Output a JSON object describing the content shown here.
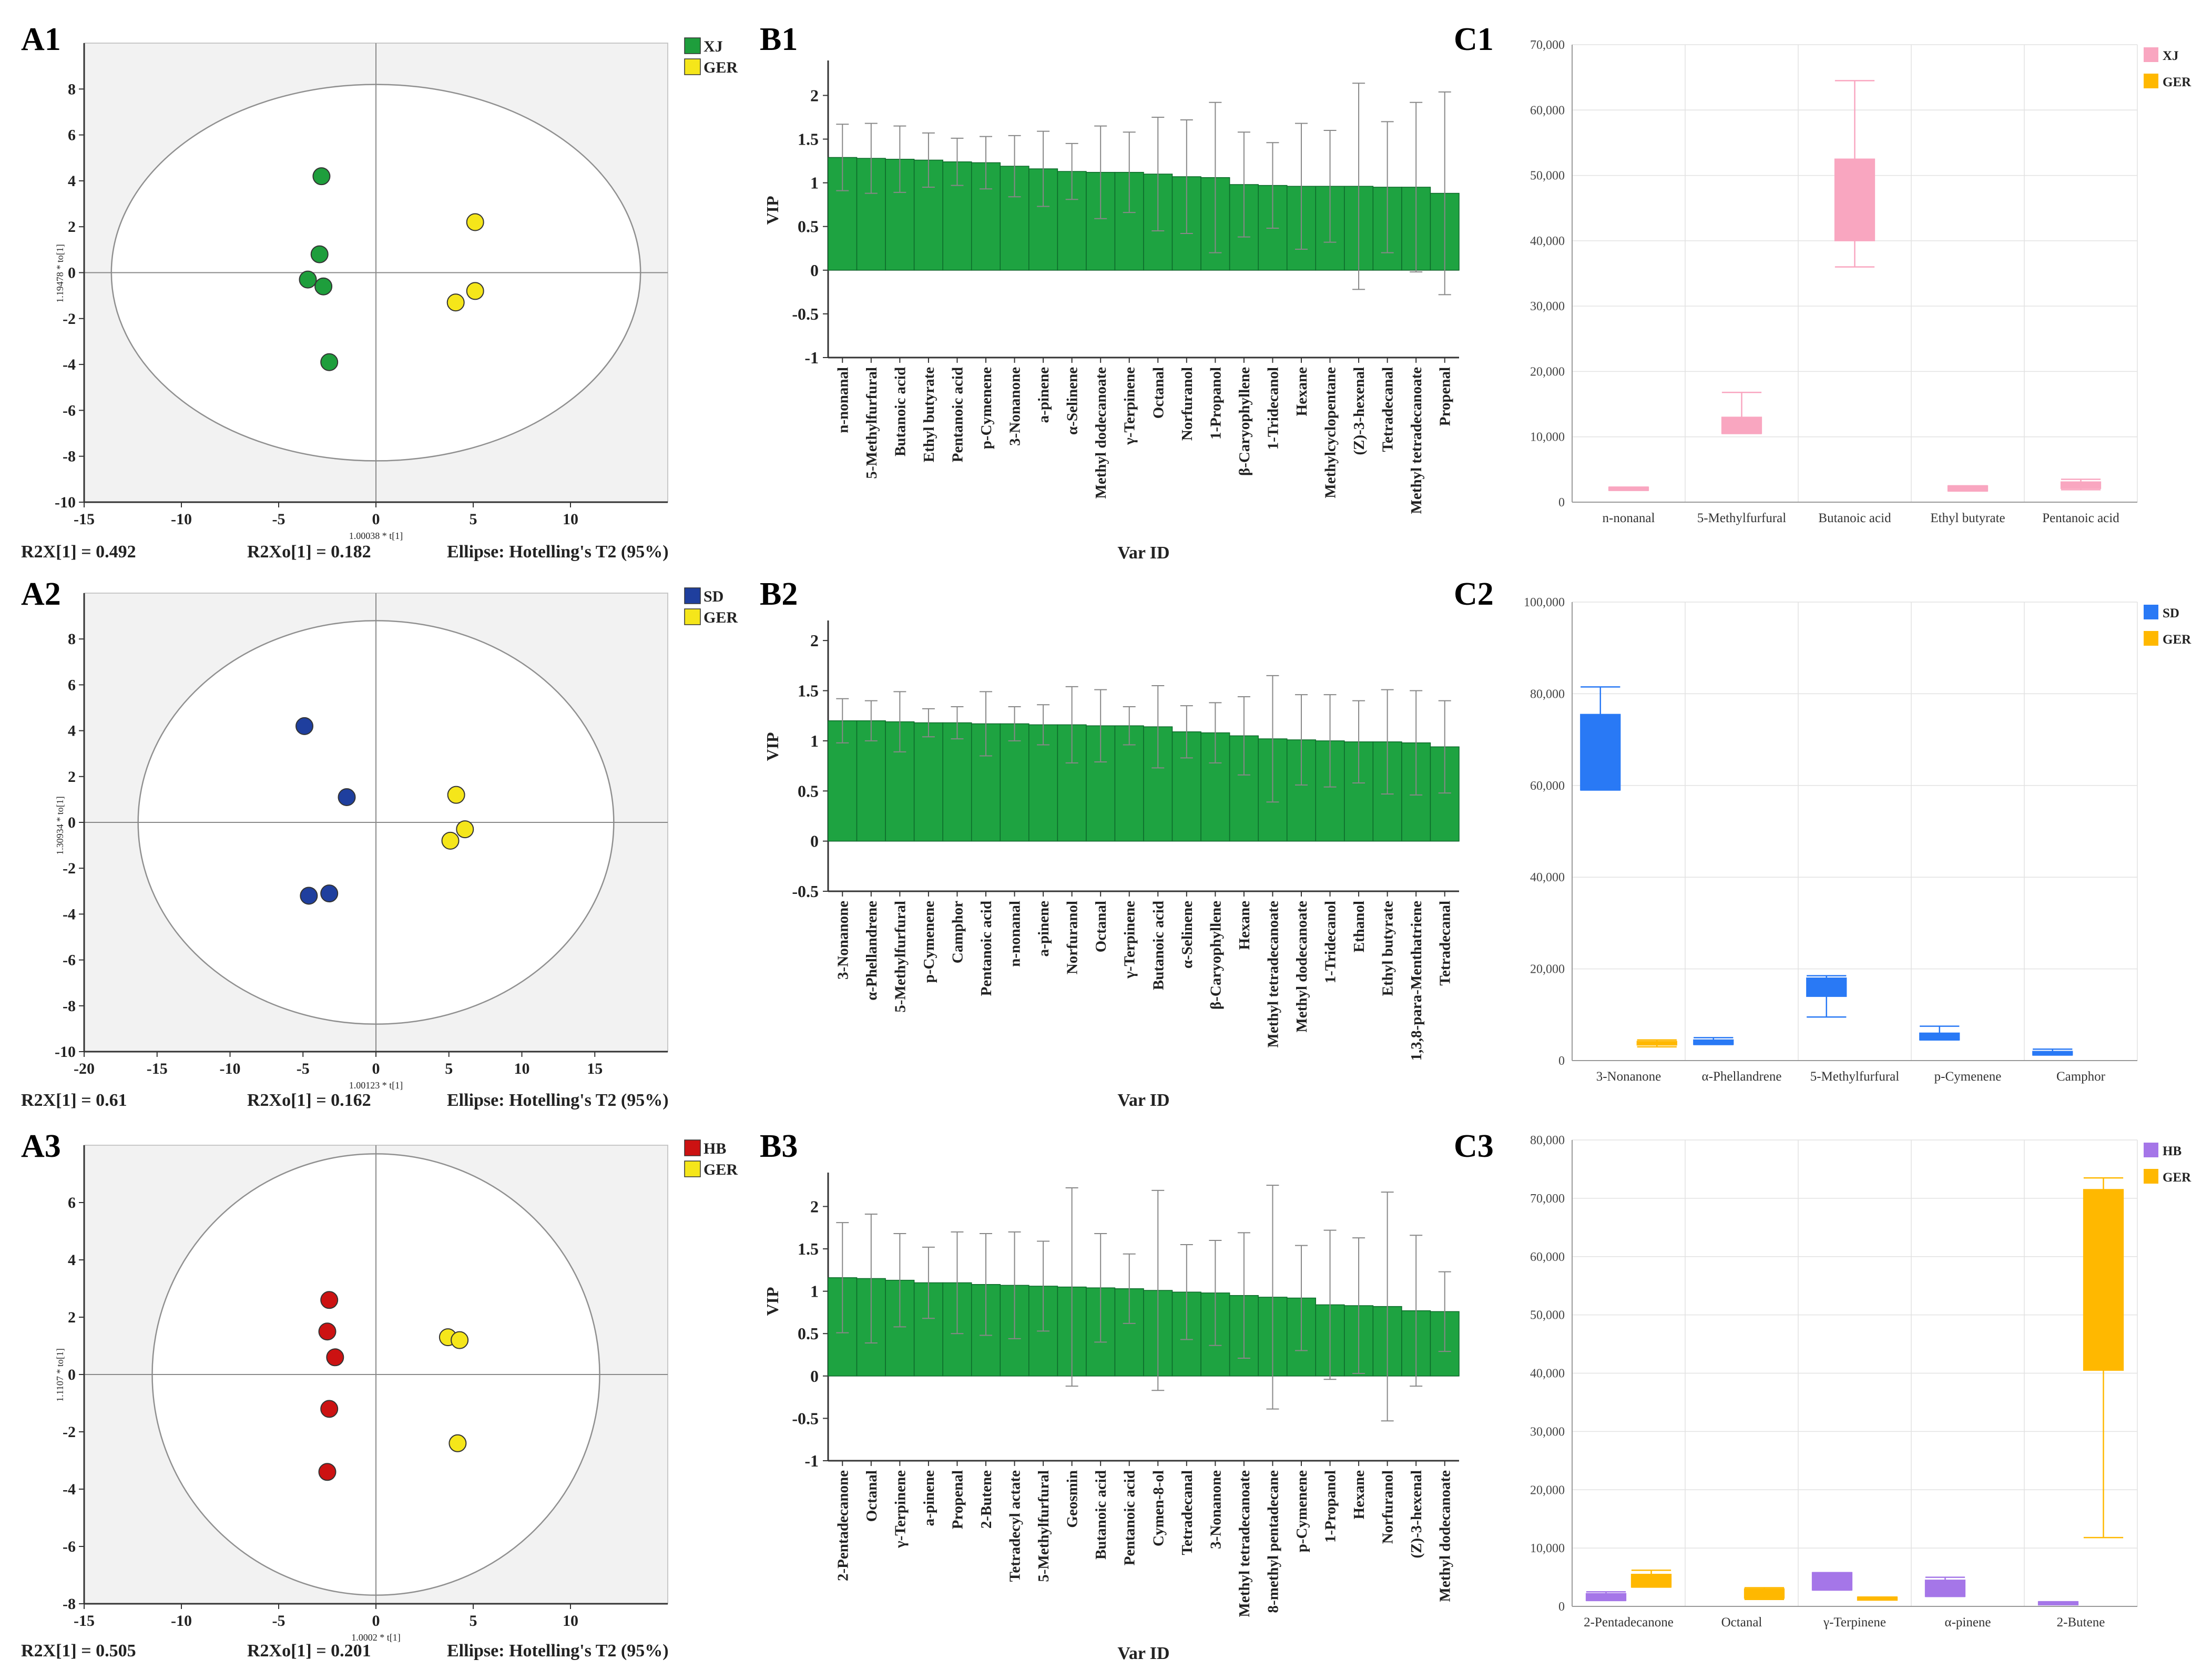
{
  "colors": {
    "XJ": "#1e9e3c",
    "SD": "#1f3f9e",
    "HB": "#cc1212",
    "GER": "#f5e61a",
    "bar": "#1ea341",
    "C1_XJ": "#f9a6c0",
    "C1_GER": "#ffb800",
    "C2_SD": "#2979f5",
    "C2_GER": "#ffb800",
    "C3_HB": "#a576e8",
    "C3_GER": "#ffb800"
  },
  "chart_data": [
    {
      "id": "A1",
      "type": "scatter",
      "panel_label": "A1",
      "xlim": [
        -15,
        15
      ],
      "ylim": [
        -10,
        10
      ],
      "xticks": [
        "-15",
        "-10",
        "-5",
        "0",
        "5",
        "10"
      ],
      "yticks": [
        "-10",
        "-8",
        "-6",
        "-4",
        "-2",
        "0",
        "2",
        "4",
        "6",
        "8"
      ],
      "xlabel": "1.00038 * t[1]",
      "ylabel": "1.19478 * to[1]",
      "legend": [
        "XJ",
        "GER"
      ],
      "series": [
        {
          "name": "XJ",
          "x": [
            -2.8,
            -2.9,
            -3.5,
            -2.7,
            -2.4
          ],
          "y": [
            4.2,
            0.8,
            -0.3,
            -0.6,
            -3.9
          ]
        },
        {
          "name": "GER",
          "x": [
            5.1,
            5.1,
            4.1
          ],
          "y": [
            2.2,
            -0.8,
            -1.3
          ]
        }
      ],
      "ellipse": {
        "rx": 13.6,
        "ry": 8.2
      },
      "footer": {
        "left": "R2X[1] = 0.492",
        "mid": "R2Xo[1] = 0.182",
        "right": "Ellipse: Hotelling's T2 (95%)"
      }
    },
    {
      "id": "A2",
      "type": "scatter",
      "panel_label": "A2",
      "xlim": [
        -20,
        20
      ],
      "ylim": [
        -10,
        10
      ],
      "xticks": [
        "-20",
        "-15",
        "-10",
        "-5",
        "0",
        "5",
        "10",
        "15"
      ],
      "yticks": [
        "-10",
        "-8",
        "-6",
        "-4",
        "-2",
        "0",
        "2",
        "4",
        "6",
        "8"
      ],
      "xlabel": "1.00123 * t[1]",
      "ylabel": "1.30934 * to[1]",
      "legend": [
        "SD",
        "GER"
      ],
      "series": [
        {
          "name": "SD",
          "x": [
            -4.9,
            -2.0,
            -4.6,
            -3.2
          ],
          "y": [
            4.2,
            1.1,
            -3.2,
            -3.1
          ]
        },
        {
          "name": "GER",
          "x": [
            5.5,
            6.1,
            5.1
          ],
          "y": [
            1.2,
            -0.3,
            -0.8
          ]
        }
      ],
      "ellipse": {
        "rx": 16.3,
        "ry": 8.8
      },
      "footer": {
        "left": "R2X[1] = 0.61",
        "mid": "R2Xo[1] = 0.162",
        "right": "Ellipse: Hotelling's T2 (95%)"
      }
    },
    {
      "id": "A3",
      "type": "scatter",
      "panel_label": "A3",
      "xlim": [
        -15,
        15
      ],
      "ylim": [
        -8,
        8
      ],
      "xticks": [
        "-15",
        "-10",
        "-5",
        "0",
        "5",
        "10"
      ],
      "yticks": [
        "-8",
        "-6",
        "-4",
        "-2",
        "0",
        "2",
        "4",
        "6"
      ],
      "xlabel": "1.0002 * t[1]",
      "ylabel": "1.1107 * to[1]",
      "legend": [
        "HB",
        "GER"
      ],
      "series": [
        {
          "name": "HB",
          "x": [
            -2.4,
            -2.5,
            -2.1,
            -2.4,
            -2.5
          ],
          "y": [
            2.6,
            1.5,
            0.6,
            -1.2,
            -3.4
          ]
        },
        {
          "name": "GER",
          "x": [
            3.7,
            4.3,
            4.2
          ],
          "y": [
            1.3,
            1.2,
            -2.4
          ]
        }
      ],
      "ellipse": {
        "rx": 11.5,
        "ry": 7.7
      },
      "footer": {
        "left": "R2X[1] = 0.505",
        "mid": "R2Xo[1] = 0.201",
        "right": "Ellipse: Hotelling's T2 (95%)"
      }
    },
    {
      "id": "B1",
      "type": "bar",
      "panel_label": "B1",
      "ylim": [
        -1,
        2.4
      ],
      "yticks": [
        "-1",
        "-0.5",
        "0",
        "0.5",
        "1",
        "1.5",
        "2"
      ],
      "ylabel": "VIP",
      "xlabel": "Var ID",
      "categories": [
        "n-nonanal",
        "5-Methylfurfural",
        "Butanoic acid",
        "Ethyl butyrate",
        "Pentanoic acid",
        "p-Cymenene",
        "3-Nonanone",
        "a-pinene",
        "α-Selinene",
        "Methyl dodecanoate",
        "γ-Terpinene",
        "Octanal",
        "Norfuranol",
        "1-Propanol",
        "β-Caryophyllene",
        "1-Tridecanol",
        "Hexane",
        "Methylcyclopentane",
        "(Z)-3-hexenal",
        "Tetradecanal",
        "Methyl tetradecanoate",
        "Propenal"
      ],
      "values": [
        1.29,
        1.28,
        1.27,
        1.26,
        1.24,
        1.23,
        1.19,
        1.16,
        1.13,
        1.12,
        1.12,
        1.1,
        1.07,
        1.06,
        0.98,
        0.97,
        0.96,
        0.96,
        0.96,
        0.95,
        0.95,
        0.88
      ],
      "errors": [
        0.38,
        0.4,
        0.38,
        0.31,
        0.27,
        0.3,
        0.35,
        0.43,
        0.32,
        0.53,
        0.46,
        0.65,
        0.65,
        0.86,
        0.6,
        0.49,
        0.72,
        0.64,
        1.18,
        0.75,
        0.97,
        1.16
      ]
    },
    {
      "id": "B2",
      "type": "bar",
      "panel_label": "B2",
      "ylim": [
        -0.5,
        2.2
      ],
      "yticks": [
        "-0.5",
        "0",
        "0.5",
        "1",
        "1.5",
        "2"
      ],
      "ylabel": "VIP",
      "xlabel": "Var ID",
      "categories": [
        "3-Nonanone",
        "α-Phellandrene",
        "5-Methylfurfural",
        "p-Cymenene",
        "Camphor",
        "Pentanoic acid",
        "n-nonanal",
        "a-pinene",
        "Norfuranol",
        "Octanal",
        "γ-Terpinene",
        "Butanoic acid",
        "α-Selinene",
        "β-Caryophyllene",
        "Hexane",
        "Methyl tetradecanoate",
        "Methyl dodecanoate",
        "1-Tridecanol",
        "Ethanol",
        "Ethyl butyrate",
        "1,3,8-para-Menthatriene",
        "Tetradecanal"
      ],
      "values": [
        1.2,
        1.2,
        1.19,
        1.18,
        1.18,
        1.17,
        1.17,
        1.16,
        1.16,
        1.15,
        1.15,
        1.14,
        1.09,
        1.08,
        1.05,
        1.02,
        1.01,
        1.0,
        0.99,
        0.99,
        0.98,
        0.94
      ],
      "errors": [
        0.22,
        0.2,
        0.3,
        0.14,
        0.16,
        0.32,
        0.17,
        0.2,
        0.38,
        0.36,
        0.19,
        0.41,
        0.26,
        0.3,
        0.39,
        0.63,
        0.45,
        0.46,
        0.41,
        0.52,
        0.52,
        0.46
      ]
    },
    {
      "id": "B3",
      "type": "bar",
      "panel_label": "B3",
      "ylim": [
        -1,
        2.4
      ],
      "yticks": [
        "-1",
        "-0.5",
        "0",
        "0.5",
        "1",
        "1.5",
        "2"
      ],
      "ylabel": "VIP",
      "xlabel": "Var ID",
      "categories": [
        "2-Pentadecanone",
        "Octanal",
        "γ-Terpinene",
        "a-pinene",
        "Propenal",
        "2-Butene",
        "Tetradecyl actate",
        "5-Methylfurfural",
        "Geosmin",
        "Butanoic acid",
        "Pentanoic acid",
        "Cymen-8-ol",
        "Tetradecanal",
        "3-Nonanone",
        "Methyl tetradecanoate",
        "8-methyl pentadecane",
        "p-Cymenene",
        "1-Propanol",
        "Hexane",
        "Norfuranol",
        "(Z)-3-hexenal",
        "Methyl dodecanoate"
      ],
      "values": [
        1.16,
        1.15,
        1.13,
        1.1,
        1.1,
        1.08,
        1.07,
        1.06,
        1.05,
        1.04,
        1.03,
        1.01,
        0.99,
        0.98,
        0.95,
        0.93,
        0.92,
        0.84,
        0.83,
        0.82,
        0.77,
        0.76
      ],
      "errors": [
        0.65,
        0.76,
        0.55,
        0.42,
        0.6,
        0.6,
        0.63,
        0.53,
        1.17,
        0.64,
        0.41,
        1.18,
        0.56,
        0.62,
        0.74,
        1.32,
        0.62,
        0.88,
        0.8,
        1.35,
        0.89,
        0.47
      ]
    },
    {
      "id": "C1",
      "type": "box",
      "panel_label": "C1",
      "ylim": [
        0,
        70000
      ],
      "yticks": [
        "0",
        "10,000",
        "20,000",
        "30,000",
        "40,000",
        "50,000",
        "60,000",
        "70,000"
      ],
      "categories": [
        "n-nonanal",
        "5-Methylfurfural",
        "Butanoic acid",
        "Ethyl butyrate",
        "Pentanoic acid"
      ],
      "legend": [
        "XJ",
        "GER"
      ],
      "series": [
        {
          "name": "XJ",
          "boxes": [
            {
              "min": 1800,
              "q1": 1800,
              "q3": 2300,
              "max": 2300
            },
            {
              "min": 10500,
              "q1": 10500,
              "q3": 13000,
              "max": 16800
            },
            {
              "min": 36000,
              "q1": 40000,
              "q3": 52500,
              "max": 64500
            },
            {
              "min": 1700,
              "q1": 1700,
              "q3": 2500,
              "max": 2500
            },
            {
              "min": 1900,
              "q1": 2100,
              "q3": 3100,
              "max": 3500
            }
          ]
        }
      ]
    },
    {
      "id": "C2",
      "type": "box",
      "panel_label": "C2",
      "ylim": [
        0,
        100000
      ],
      "yticks": [
        "0",
        "20,000",
        "40,000",
        "60,000",
        "80,000",
        "100,000"
      ],
      "categories": [
        "3-Nonanone",
        "α-Phellandrene",
        "5-Methylfurfural",
        "p-Cymenene",
        "Camphor"
      ],
      "legend": [
        "SD",
        "GER"
      ],
      "series": [
        {
          "name": "SD",
          "offset": -0.25,
          "boxes": [
            {
              "min": 59000,
              "q1": 59000,
              "q3": 75500,
              "max": 81500
            },
            {
              "min": 3500,
              "q1": 3500,
              "q3": 4500,
              "max": 5000
            },
            {
              "min": 9500,
              "q1": 14000,
              "q3": 18000,
              "max": 18500
            },
            {
              "min": 4500,
              "q1": 4500,
              "q3": 6000,
              "max": 7500
            },
            {
              "min": 1200,
              "q1": 1200,
              "q3": 2000,
              "max": 2500
            }
          ]
        },
        {
          "name": "GER",
          "offset": 0.25,
          "boxes": [
            {
              "min": 3000,
              "q1": 3400,
              "q3": 4200,
              "max": 4500
            }
          ]
        }
      ]
    },
    {
      "id": "C3",
      "type": "box",
      "panel_label": "C3",
      "ylim": [
        0,
        80000
      ],
      "yticks": [
        "0",
        "10,000",
        "20,000",
        "30,000",
        "40,000",
        "50,000",
        "60,000",
        "70,000",
        "80,000"
      ],
      "categories": [
        "2-Pentadecanone",
        "Octanal",
        "γ-Terpinene",
        "α-pinene",
        "2-Butene"
      ],
      "legend": [
        "HB",
        "GER"
      ],
      "series": [
        {
          "name": "HB",
          "offset": -0.2,
          "boxes": [
            {
              "min": 1000,
              "q1": 1000,
              "q3": 2200,
              "max": 2500
            },
            null,
            {
              "min": 2800,
              "q1": 2800,
              "q3": 5800,
              "max": 5800
            },
            {
              "min": 1700,
              "q1": 1700,
              "q3": 4500,
              "max": 5000
            },
            {
              "min": 400,
              "q1": 400,
              "q3": 800,
              "max": 800
            }
          ]
        },
        {
          "name": "GER",
          "offset": 0.2,
          "boxes": [
            {
              "min": 3300,
              "q1": 3300,
              "q3": 5500,
              "max": 6200
            },
            {
              "min": 1200,
              "q1": 1400,
              "q3": 3000,
              "max": 3200
            },
            {
              "min": 1300,
              "q1": 1300,
              "q3": 1600,
              "max": 1600
            },
            null,
            {
              "min": 11800,
              "q1": 40500,
              "q3": 71500,
              "max": 73500
            }
          ]
        }
      ]
    }
  ]
}
